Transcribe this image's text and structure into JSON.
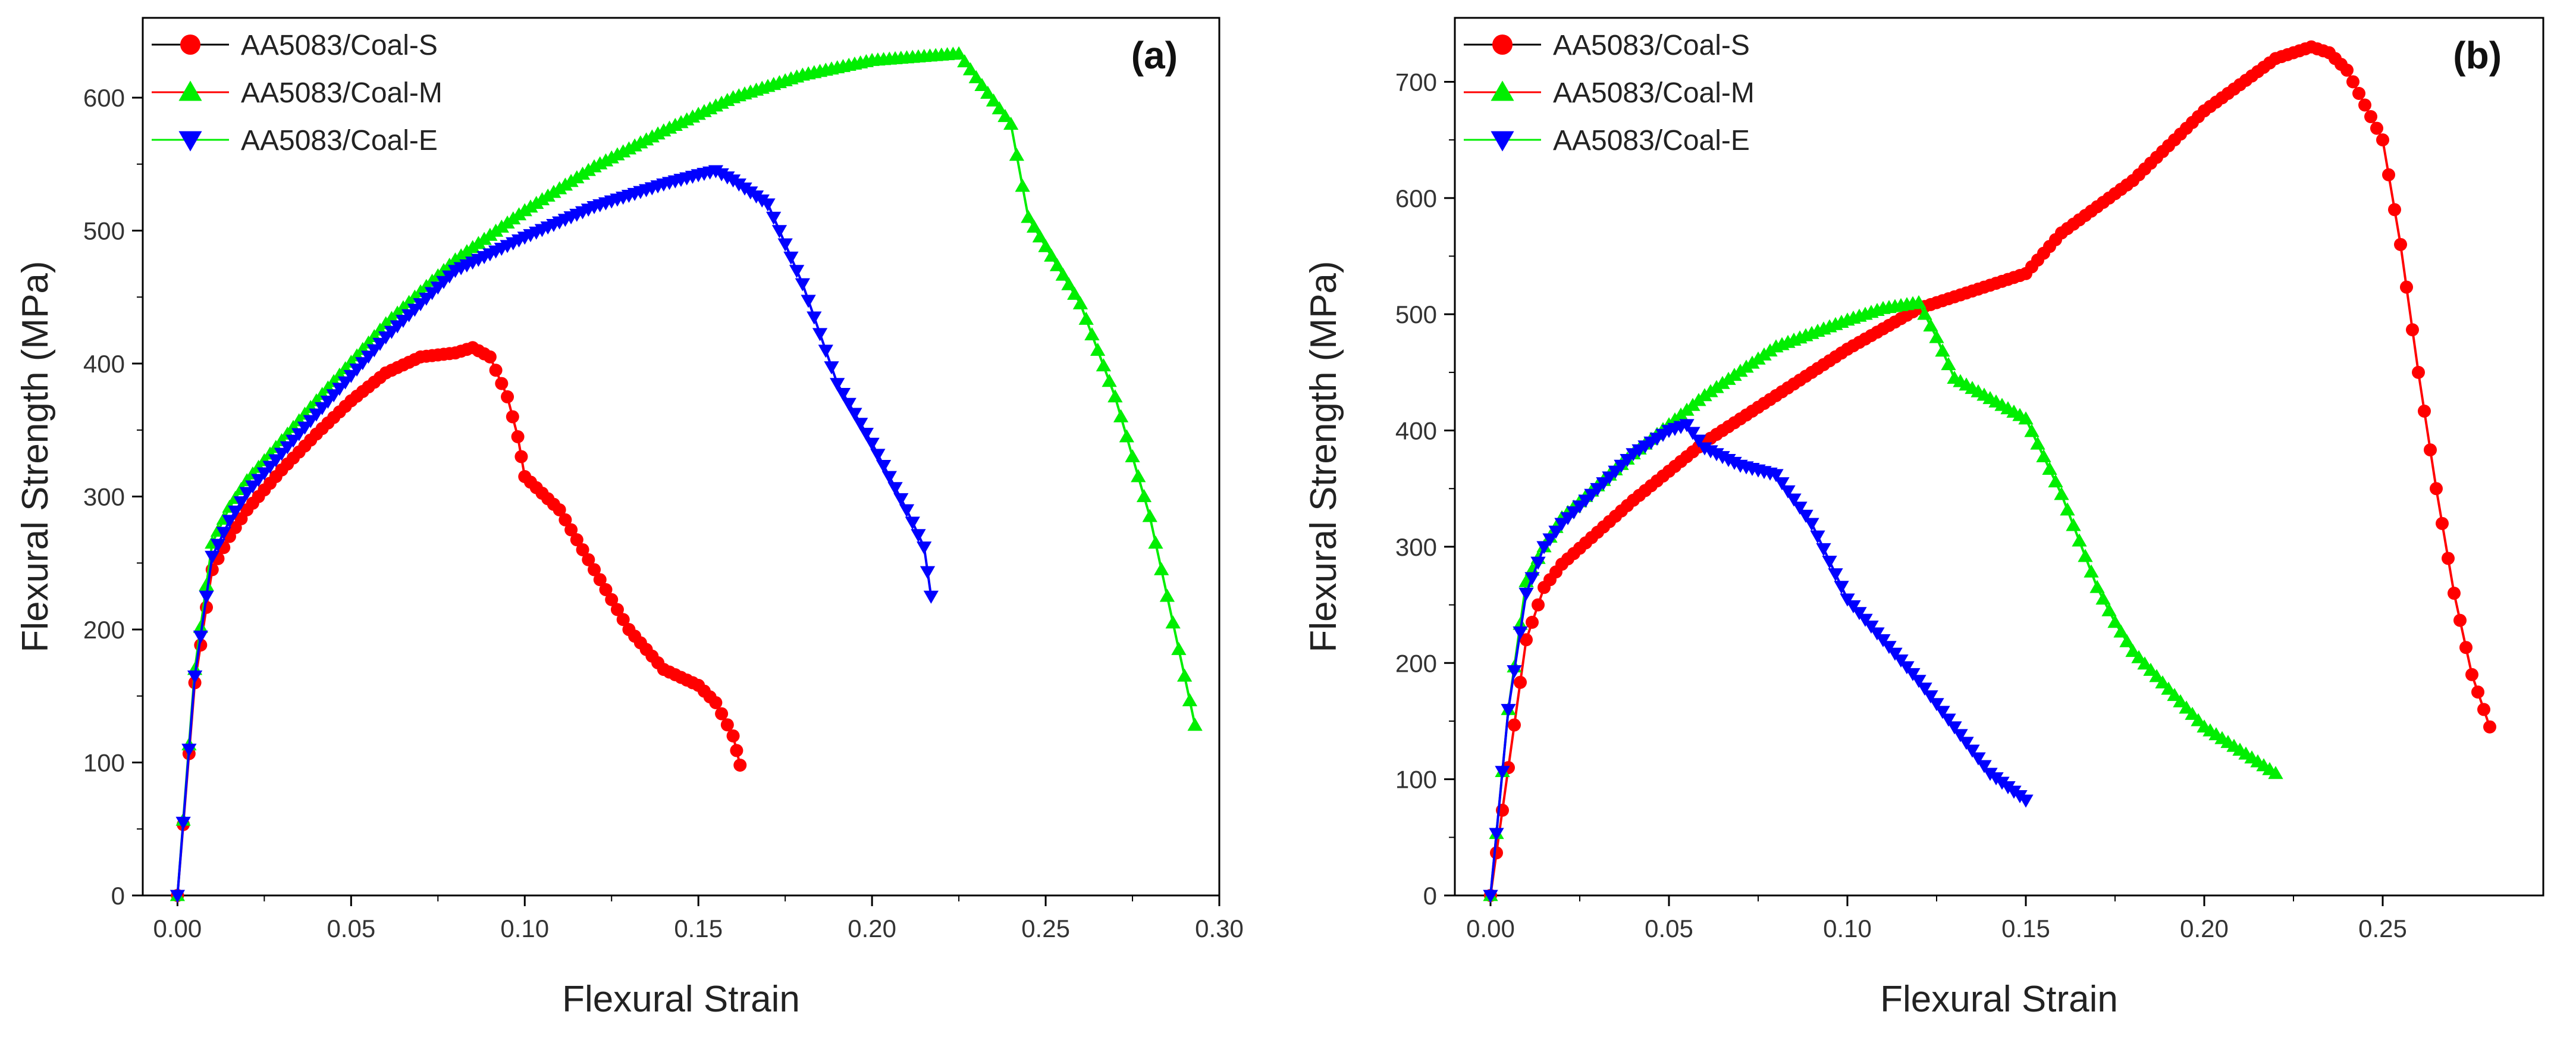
{
  "chart_data": [
    {
      "id": "a",
      "type": "line",
      "panel_label": "(a)",
      "xlabel": "Flexural Strain",
      "ylabel": "Flexural Strength (MPa)",
      "xlim": [
        -0.01,
        0.3
      ],
      "ylim": [
        0,
        660
      ],
      "xticks": [
        0.0,
        0.05,
        0.1,
        0.15,
        0.2,
        0.25,
        0.3
      ],
      "xtick_labels": [
        "0.00",
        "0.05",
        "0.10",
        "0.15",
        "0.20",
        "0.25",
        "0.30"
      ],
      "yticks": [
        0,
        100,
        200,
        300,
        400,
        500,
        600
      ],
      "ytick_labels": [
        "0",
        "100",
        "200",
        "300",
        "400",
        "500",
        "600"
      ],
      "legend_position": "top-left",
      "series": [
        {
          "name": "AA5083/Coal-S",
          "color": "#ff0000",
          "marker": "circle",
          "x": [
            0.0,
            0.005,
            0.01,
            0.015,
            0.02,
            0.03,
            0.04,
            0.05,
            0.06,
            0.07,
            0.08,
            0.085,
            0.09,
            0.095,
            0.098,
            0.1,
            0.11,
            0.12,
            0.13,
            0.14,
            0.15,
            0.155,
            0.16,
            0.162
          ],
          "y": [
            0,
            160,
            245,
            270,
            290,
            320,
            347,
            372,
            393,
            405,
            408,
            412,
            405,
            375,
            345,
            315,
            290,
            245,
            200,
            170,
            158,
            145,
            120,
            98
          ]
        },
        {
          "name": "AA5083/Coal-M",
          "color": "#00ee00",
          "marker": "triangle-up",
          "x": [
            0.0,
            0.005,
            0.01,
            0.015,
            0.02,
            0.04,
            0.06,
            0.08,
            0.1,
            0.12,
            0.14,
            0.16,
            0.18,
            0.2,
            0.22,
            0.225,
            0.23,
            0.24,
            0.245,
            0.25,
            0.26,
            0.27,
            0.28,
            0.29,
            0.293
          ],
          "y": [
            0,
            170,
            265,
            292,
            312,
            372,
            430,
            478,
            515,
            548,
            575,
            600,
            617,
            628,
            632,
            633,
            615,
            580,
            510,
            488,
            445,
            375,
            285,
            165,
            128
          ]
        },
        {
          "name": "AA5083/Coal-E",
          "color": "#0000ff",
          "marker": "triangle-down",
          "x": [
            0.0,
            0.005,
            0.01,
            0.015,
            0.02,
            0.04,
            0.06,
            0.08,
            0.1,
            0.12,
            0.14,
            0.15,
            0.155,
            0.16,
            0.17,
            0.18,
            0.19,
            0.2,
            0.21,
            0.215,
            0.217
          ],
          "y": [
            0,
            165,
            255,
            282,
            303,
            362,
            420,
            470,
            495,
            518,
            535,
            542,
            545,
            538,
            520,
            460,
            385,
            340,
            290,
            262,
            225
          ]
        }
      ]
    },
    {
      "id": "b",
      "type": "line",
      "panel_label": "(b)",
      "xlabel": "Flexural Strain",
      "ylabel": "Flexural Strength (MPa)",
      "xlim": [
        -0.01,
        0.295
      ],
      "ylim": [
        0,
        755
      ],
      "xticks": [
        0.0,
        0.05,
        0.1,
        0.15,
        0.2,
        0.25
      ],
      "xtick_labels": [
        "0.00",
        "0.05",
        "0.10",
        "0.15",
        "0.20",
        "0.25"
      ],
      "yticks": [
        0,
        100,
        200,
        300,
        400,
        500,
        600,
        700
      ],
      "ytick_labels": [
        "0",
        "100",
        "200",
        "300",
        "400",
        "500",
        "600",
        "700"
      ],
      "legend_position": "top-left",
      "series": [
        {
          "name": "AA5083/Coal-S",
          "color": "#ff0000",
          "marker": "circle",
          "x": [
            0.0,
            0.005,
            0.01,
            0.015,
            0.02,
            0.04,
            0.06,
            0.08,
            0.1,
            0.12,
            0.14,
            0.15,
            0.16,
            0.18,
            0.2,
            0.22,
            0.23,
            0.235,
            0.24,
            0.25,
            0.255,
            0.26,
            0.265,
            0.27,
            0.275,
            0.28
          ],
          "y": [
            0,
            110,
            220,
            265,
            285,
            340,
            390,
            430,
            470,
            505,
            525,
            535,
            570,
            615,
            675,
            720,
            730,
            725,
            710,
            650,
            560,
            450,
            350,
            260,
            190,
            145
          ]
        },
        {
          "name": "AA5083/Coal-M",
          "color": "#00ee00",
          "marker": "triangle-up",
          "x": [
            0.0,
            0.005,
            0.01,
            0.015,
            0.02,
            0.04,
            0.06,
            0.08,
            0.1,
            0.11,
            0.12,
            0.125,
            0.13,
            0.15,
            0.16,
            0.17,
            0.175,
            0.18,
            0.2,
            0.22
          ],
          "y": [
            0,
            160,
            270,
            300,
            325,
            380,
            430,
            472,
            495,
            505,
            510,
            480,
            445,
            410,
            345,
            265,
            235,
            210,
            145,
            105
          ]
        },
        {
          "name": "AA5083/Coal-E",
          "color": "#0000ff",
          "marker": "triangle-down",
          "x": [
            0.0,
            0.005,
            0.01,
            0.015,
            0.02,
            0.03,
            0.04,
            0.05,
            0.055,
            0.06,
            0.07,
            0.08,
            0.09,
            0.1,
            0.12,
            0.14,
            0.15
          ],
          "y": [
            0,
            160,
            260,
            300,
            320,
            350,
            380,
            400,
            405,
            385,
            370,
            362,
            320,
            255,
            185,
            105,
            82
          ]
        }
      ]
    }
  ]
}
